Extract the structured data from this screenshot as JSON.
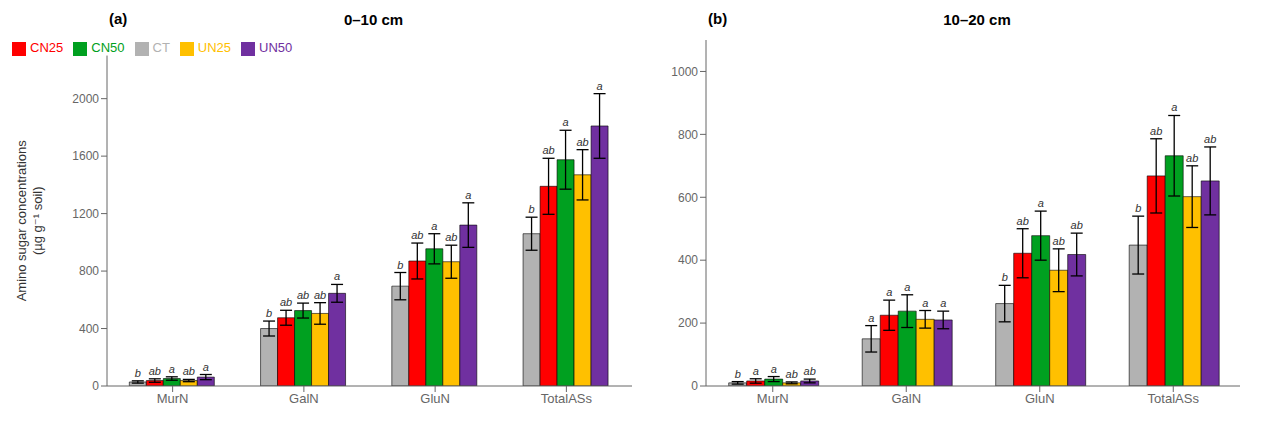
{
  "chart_data": [
    {
      "type": "bar",
      "title": "0–10 cm",
      "annotations": [
        "(a)"
      ],
      "ylabel": "Amino sugar concentrations\n(µg g⁻¹ soil)",
      "categories": [
        "MurN",
        "GalN",
        "GluN",
        "TotalASs"
      ],
      "series": [
        {
          "name": "CT",
          "color": "#b2b2b2",
          "values": [
            28,
            400,
            695,
            1060
          ],
          "errors": [
            8,
            52,
            95,
            115
          ],
          "annotations": [
            "b",
            "b",
            "b",
            "b"
          ]
        },
        {
          "name": "CN25",
          "color": "#ff0000",
          "values": [
            38,
            475,
            870,
            1390
          ],
          "errors": [
            12,
            52,
            125,
            195
          ],
          "annotations": [
            "ab",
            "ab",
            "ab",
            "ab"
          ]
        },
        {
          "name": "CN50",
          "color": "#00a020",
          "values": [
            52,
            525,
            955,
            1575
          ],
          "errors": [
            12,
            52,
            105,
            205
          ],
          "annotations": [
            "a",
            "ab",
            "a",
            "a"
          ]
        },
        {
          "name": "UN25",
          "color": "#ffc000",
          "values": [
            38,
            505,
            865,
            1470
          ],
          "errors": [
            8,
            75,
            115,
            175
          ],
          "annotations": [
            "ab",
            "ab",
            "ab",
            "ab"
          ]
        },
        {
          "name": "UN50",
          "color": "#7030a0",
          "values": [
            62,
            645,
            1120,
            1810
          ],
          "errors": [
            18,
            62,
            155,
            225
          ],
          "annotations": [
            "a",
            "a",
            "a",
            "a"
          ]
        }
      ],
      "ylim": [
        0,
        2300
      ],
      "yticks": [
        0,
        400,
        800,
        1200,
        1600,
        2000
      ],
      "grid": false,
      "legend": "upper left"
    },
    {
      "type": "bar",
      "title": "10–20 cm",
      "annotations": [
        "(b)"
      ],
      "categories": [
        "MurN",
        "GalN",
        "GluN",
        "TotalASs"
      ],
      "series": [
        {
          "name": "CT",
          "color": "#b2b2b2",
          "values": [
            10,
            150,
            262,
            448
          ],
          "errors": [
            4,
            42,
            58,
            92
          ],
          "annotations": [
            "b",
            "a",
            "b",
            "b"
          ]
        },
        {
          "name": "CN25",
          "color": "#ff0000",
          "values": [
            16,
            225,
            422,
            668
          ],
          "errors": [
            7,
            48,
            78,
            118
          ],
          "annotations": [
            "a",
            "a",
            "ab",
            "ab"
          ]
        },
        {
          "name": "CN50",
          "color": "#00a020",
          "values": [
            22,
            238,
            478,
            732
          ],
          "errors": [
            8,
            52,
            78,
            128
          ],
          "annotations": [
            "a",
            "a",
            "a",
            "a"
          ]
        },
        {
          "name": "UN25",
          "color": "#ffc000",
          "values": [
            10,
            212,
            368,
            602
          ],
          "errors": [
            3,
            28,
            68,
            98
          ],
          "annotations": [
            "ab",
            "a",
            "ab",
            "ab"
          ]
        },
        {
          "name": "UN50",
          "color": "#7030a0",
          "values": [
            16,
            210,
            418,
            652
          ],
          "errors": [
            6,
            28,
            68,
            108
          ],
          "annotations": [
            "ab",
            "a",
            "ab",
            "ab"
          ]
        }
      ],
      "ylim": [
        0,
        1100
      ],
      "yticks": [
        0,
        200,
        400,
        600,
        800,
        1000
      ],
      "grid": false
    }
  ]
}
